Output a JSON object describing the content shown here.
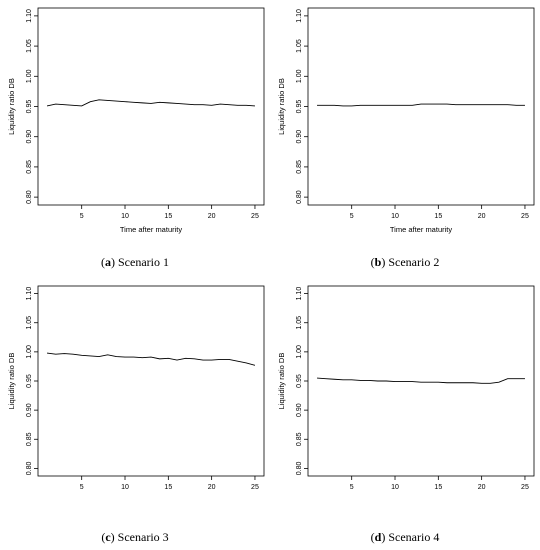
{
  "chart_data": [
    {
      "type": "line",
      "caption_letter": "a",
      "caption_text": " Scenario 1",
      "xlabel": "Time after maturity",
      "ylabel": "Liquidity ratio DB",
      "xlim": [
        1,
        25
      ],
      "ylim": [
        0.8,
        1.1
      ],
      "xticks": [
        5,
        10,
        15,
        20,
        25
      ],
      "yticks": [
        "0.80",
        "0.85",
        "0.90",
        "0.95",
        "1.00",
        "1.05",
        "1.10"
      ],
      "x": [
        1,
        2,
        3,
        4,
        5,
        6,
        7,
        8,
        9,
        10,
        11,
        12,
        13,
        14,
        15,
        16,
        17,
        18,
        19,
        20,
        21,
        22,
        23,
        24,
        25
      ],
      "values": [
        0.951,
        0.954,
        0.953,
        0.952,
        0.951,
        0.958,
        0.961,
        0.96,
        0.959,
        0.958,
        0.957,
        0.956,
        0.955,
        0.957,
        0.956,
        0.955,
        0.954,
        0.953,
        0.953,
        0.952,
        0.954,
        0.953,
        0.952,
        0.952,
        0.951
      ]
    },
    {
      "type": "line",
      "caption_letter": "b",
      "caption_text": " Scenario 2",
      "xlabel": "Time after maturity",
      "ylabel": "Liquidity ratio DB",
      "xlim": [
        1,
        25
      ],
      "ylim": [
        0.8,
        1.1
      ],
      "xticks": [
        5,
        10,
        15,
        20,
        25
      ],
      "yticks": [
        "0.80",
        "0.85",
        "0.90",
        "0.95",
        "1.00",
        "1.05",
        "1.10"
      ],
      "x": [
        1,
        2,
        3,
        4,
        5,
        6,
        7,
        8,
        9,
        10,
        11,
        12,
        13,
        14,
        15,
        16,
        17,
        18,
        19,
        20,
        21,
        22,
        23,
        24,
        25
      ],
      "values": [
        0.952,
        0.952,
        0.952,
        0.951,
        0.951,
        0.952,
        0.952,
        0.952,
        0.952,
        0.952,
        0.952,
        0.952,
        0.954,
        0.954,
        0.954,
        0.954,
        0.953,
        0.953,
        0.953,
        0.953,
        0.953,
        0.953,
        0.953,
        0.952,
        0.952
      ]
    },
    {
      "type": "line",
      "caption_letter": "c",
      "caption_text": " Scenario 3",
      "xlabel": "",
      "ylabel": "Liquidity ratio DB",
      "xlim": [
        1,
        25
      ],
      "ylim": [
        0.8,
        1.1
      ],
      "xticks": [
        5,
        10,
        15,
        20,
        25
      ],
      "yticks": [
        "0.80",
        "0.85",
        "0.90",
        "0.95",
        "1.00",
        "1.05",
        "1.10"
      ],
      "x": [
        1,
        2,
        3,
        4,
        5,
        6,
        7,
        8,
        9,
        10,
        11,
        12,
        13,
        14,
        15,
        16,
        17,
        18,
        19,
        20,
        21,
        22,
        23,
        24,
        25
      ],
      "values": [
        0.998,
        0.996,
        0.997,
        0.996,
        0.994,
        0.993,
        0.992,
        0.995,
        0.992,
        0.991,
        0.991,
        0.99,
        0.991,
        0.988,
        0.989,
        0.986,
        0.989,
        0.988,
        0.986,
        0.986,
        0.987,
        0.987,
        0.984,
        0.981,
        0.977
      ]
    },
    {
      "type": "line",
      "caption_letter": "d",
      "caption_text": " Scenario 4",
      "xlabel": "",
      "ylabel": "Liquidity ratio DB",
      "xlim": [
        1,
        25
      ],
      "ylim": [
        0.8,
        1.1
      ],
      "xticks": [
        5,
        10,
        15,
        20,
        25
      ],
      "yticks": [
        "0.80",
        "0.85",
        "0.90",
        "0.95",
        "1.00",
        "1.05",
        "1.10"
      ],
      "x": [
        1,
        2,
        3,
        4,
        5,
        6,
        7,
        8,
        9,
        10,
        11,
        12,
        13,
        14,
        15,
        16,
        17,
        18,
        19,
        20,
        21,
        22,
        23,
        24,
        25
      ],
      "values": [
        0.955,
        0.954,
        0.953,
        0.952,
        0.952,
        0.951,
        0.951,
        0.95,
        0.95,
        0.949,
        0.949,
        0.949,
        0.948,
        0.948,
        0.948,
        0.947,
        0.947,
        0.947,
        0.947,
        0.946,
        0.946,
        0.948,
        0.954,
        0.954,
        0.954
      ]
    }
  ]
}
